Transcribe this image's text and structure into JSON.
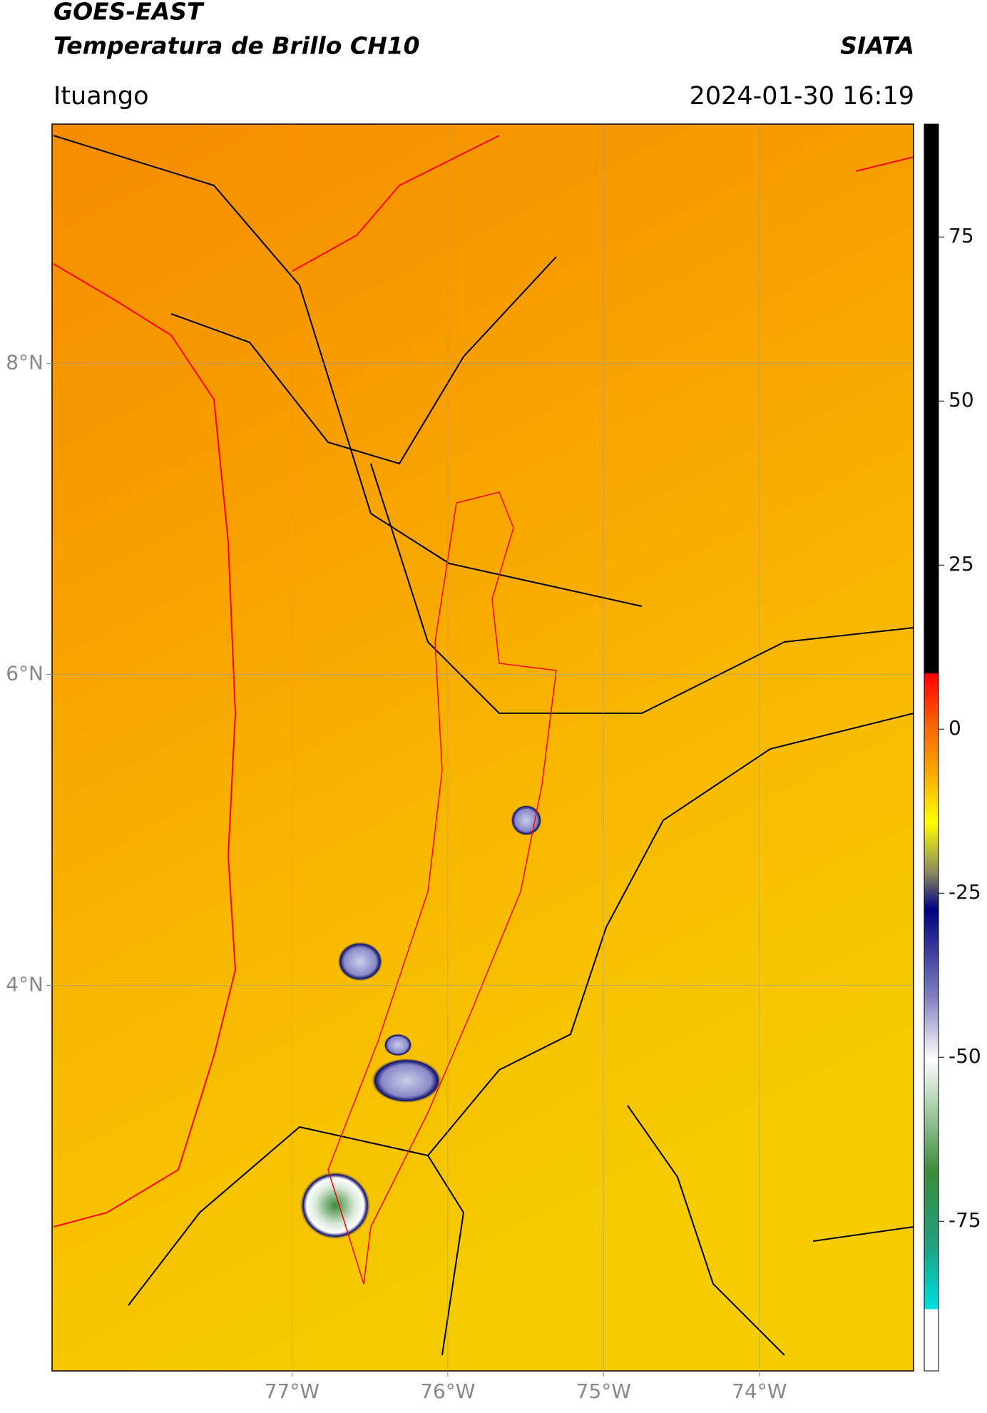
{
  "header": {
    "title": "GOES-EAST",
    "subtitle": "Temperatura de Brillo CH10",
    "source": "SIATA",
    "location": "Ituango",
    "datetime": "2024-01-30 16:19"
  },
  "map": {
    "xlim": [
      -78.54,
      -73.01
    ],
    "ylim": [
      1.52,
      9.54
    ],
    "xticks": [
      {
        "value": -77,
        "label": "77°W"
      },
      {
        "value": -76,
        "label": "76°W"
      },
      {
        "value": -75,
        "label": "75°W"
      },
      {
        "value": -74,
        "label": "74°W"
      }
    ],
    "yticks": [
      {
        "value": 8,
        "label": "8°N"
      },
      {
        "value": 6,
        "label": "6°N"
      },
      {
        "value": 4,
        "label": "4°N"
      }
    ],
    "grid": true
  },
  "colorbar": {
    "ylim": [
      -97.8,
      92.2
    ],
    "yticks": [
      75,
      50,
      25,
      0,
      -25,
      -50,
      -75
    ]
  }
}
